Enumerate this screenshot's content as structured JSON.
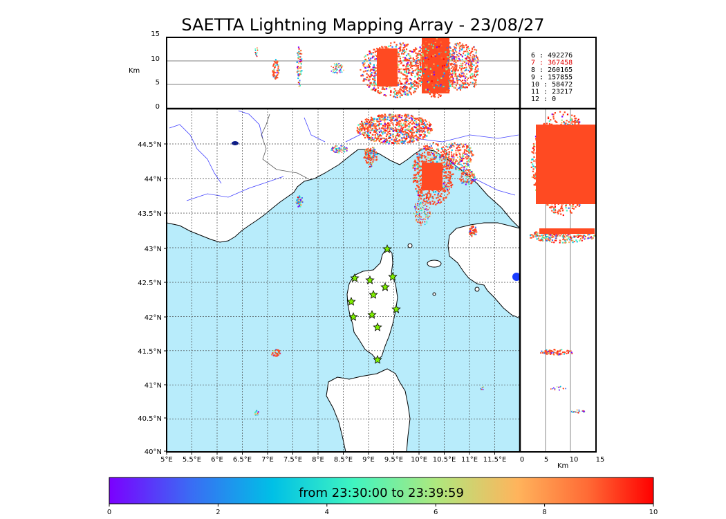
{
  "title": "SAETTA Lightning Mapping Array - 23/08/27",
  "colorbar": {
    "label": "from 23:30:00 to 23:39:59",
    "ticks": [
      "0",
      "2",
      "4",
      "6",
      "8",
      "10"
    ],
    "colors": [
      "#7b00ff",
      "#3a6cf4",
      "#00c0e6",
      "#40f5c0",
      "#aee87e",
      "#ffb45c",
      "#ff6a35",
      "#ff0000"
    ]
  },
  "axes": {
    "alt_unit": "Km",
    "alt_ticks": [
      "15",
      "10",
      "5",
      "0"
    ],
    "lon_ticks": [
      "5°E",
      "5.5°E",
      "6°E",
      "6.5°E",
      "7°E",
      "7.5°E",
      "8°E",
      "8.5°E",
      "9°E",
      "9.5°E",
      "10°E",
      "10.5°E",
      "11°E",
      "11.5°E"
    ],
    "lat_ticks": [
      "44.5°N",
      "44°N",
      "43.5°N",
      "43°N",
      "42.5°N",
      "42°N",
      "41.5°N",
      "41°N",
      "40.5°N",
      "40°N"
    ],
    "side_ticks": [
      "0",
      "5",
      "10",
      "15"
    ],
    "side_unit": "Km"
  },
  "station_counts": [
    {
      "label": "6  :   492276",
      "color": "#000000"
    },
    {
      "label": "7  :   367458",
      "color": "#e00000"
    },
    {
      "label": "8  :   260165",
      "color": "#000000"
    },
    {
      "label": "9  :   157855",
      "color": "#000000"
    },
    {
      "label": "10  :    58472",
      "color": "#000000"
    },
    {
      "label": "11  :    23217",
      "color": "#000000"
    },
    {
      "label": "12  :        0",
      "color": "#000000"
    }
  ],
  "map_colors": {
    "sea": "#b8ecfb",
    "land": "#ffffff",
    "coast": "#000000",
    "rivers": "#4040ff",
    "borders": "#555555",
    "stations": "#7ff000"
  }
}
